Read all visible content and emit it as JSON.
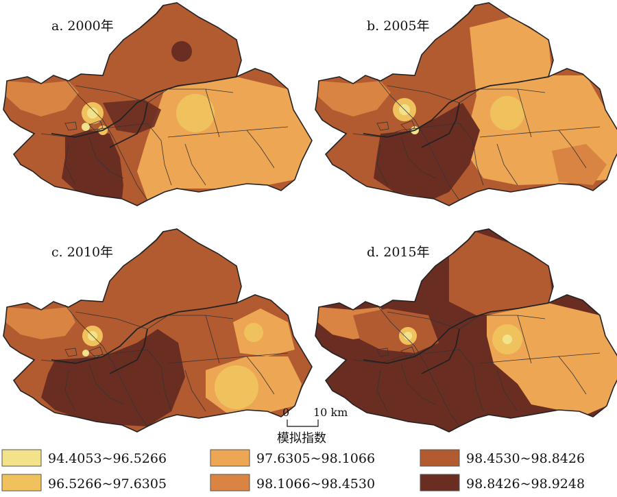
{
  "panels": [
    {
      "id": "a",
      "title": "a. 2000年",
      "dominant": [
        "#a0522d",
        "#e0954c",
        "#f0b45c",
        "#6b2e22",
        "#c46e35"
      ]
    },
    {
      "id": "b",
      "title": "b. 2005年",
      "dominant": [
        "#a0522d",
        "#e0954c",
        "#f0b45c",
        "#6b2e22",
        "#c46e35"
      ]
    },
    {
      "id": "c",
      "title": "c. 2010年",
      "dominant": [
        "#a0522d",
        "#e0954c",
        "#f0b45c",
        "#6b2e22",
        "#c46e35"
      ]
    },
    {
      "id": "d",
      "title": "d. 2015年",
      "dominant": [
        "#a0522d",
        "#e0954c",
        "#f0b45c",
        "#6b2e22",
        "#c46e35"
      ]
    }
  ],
  "scale_bar": {
    "zero": "0",
    "end": "10 km"
  },
  "legend": {
    "title": "模拟指数",
    "items": [
      {
        "label": "94.4053~96.5266",
        "color": "#f2e38a"
      },
      {
        "label": "96.5266~97.6305",
        "color": "#f0c25e"
      },
      {
        "label": "97.6305~98.1066",
        "color": "#eda653"
      },
      {
        "label": "98.1066~98.4530",
        "color": "#d98442"
      },
      {
        "label": "98.4530~98.8426",
        "color": "#b25a30"
      },
      {
        "label": "98.8426~98.9248",
        "color": "#6a2d22"
      }
    ]
  }
}
